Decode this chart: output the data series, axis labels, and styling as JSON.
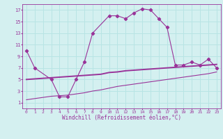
{
  "xlabel": "Windchill (Refroidissement éolien,°C)",
  "bg_color": "#d4f0f0",
  "grid_color": "#b8e4e4",
  "line_color": "#993399",
  "xlim": [
    -0.5,
    23.5
  ],
  "ylim": [
    0,
    18
  ],
  "xticks": [
    0,
    1,
    2,
    3,
    4,
    5,
    6,
    7,
    8,
    9,
    10,
    11,
    12,
    13,
    14,
    15,
    16,
    17,
    18,
    19,
    20,
    21,
    22,
    23
  ],
  "yticks": [
    1,
    3,
    5,
    7,
    9,
    11,
    13,
    15,
    17
  ],
  "curve1_x": [
    0,
    1,
    3,
    4,
    5,
    6,
    7,
    8,
    10,
    11,
    12,
    13,
    14,
    15,
    16,
    17,
    18,
    19,
    20,
    21,
    22,
    23
  ],
  "curve1_y": [
    10,
    7,
    5,
    2,
    2,
    5,
    8,
    13,
    16,
    16,
    15.5,
    16.5,
    17.2,
    17,
    15.5,
    14,
    7.5,
    7.5,
    8,
    7.5,
    8.5,
    7
  ],
  "curve2_x": [
    0,
    1,
    2,
    3,
    4,
    5,
    6,
    7,
    8,
    9,
    10,
    11,
    12,
    13,
    14,
    15,
    16,
    17,
    18,
    19,
    20,
    21,
    22,
    23
  ],
  "curve2_y": [
    5.0,
    5.1,
    5.2,
    5.3,
    5.4,
    5.5,
    5.6,
    5.7,
    5.8,
    5.9,
    6.2,
    6.3,
    6.5,
    6.6,
    6.7,
    6.8,
    6.9,
    7.0,
    7.1,
    7.2,
    7.3,
    7.4,
    7.5,
    7.6
  ],
  "curve3_x": [
    0,
    1,
    2,
    3,
    4,
    5,
    6,
    7,
    8,
    9,
    10,
    11,
    12,
    13,
    14,
    15,
    16,
    17,
    18,
    19,
    20,
    21,
    22,
    23
  ],
  "curve3_y": [
    1.5,
    1.7,
    1.9,
    2.1,
    2.2,
    2.3,
    2.5,
    2.7,
    3.0,
    3.2,
    3.5,
    3.8,
    4.0,
    4.2,
    4.4,
    4.6,
    4.8,
    5.0,
    5.2,
    5.4,
    5.6,
    5.8,
    6.0,
    6.3
  ]
}
